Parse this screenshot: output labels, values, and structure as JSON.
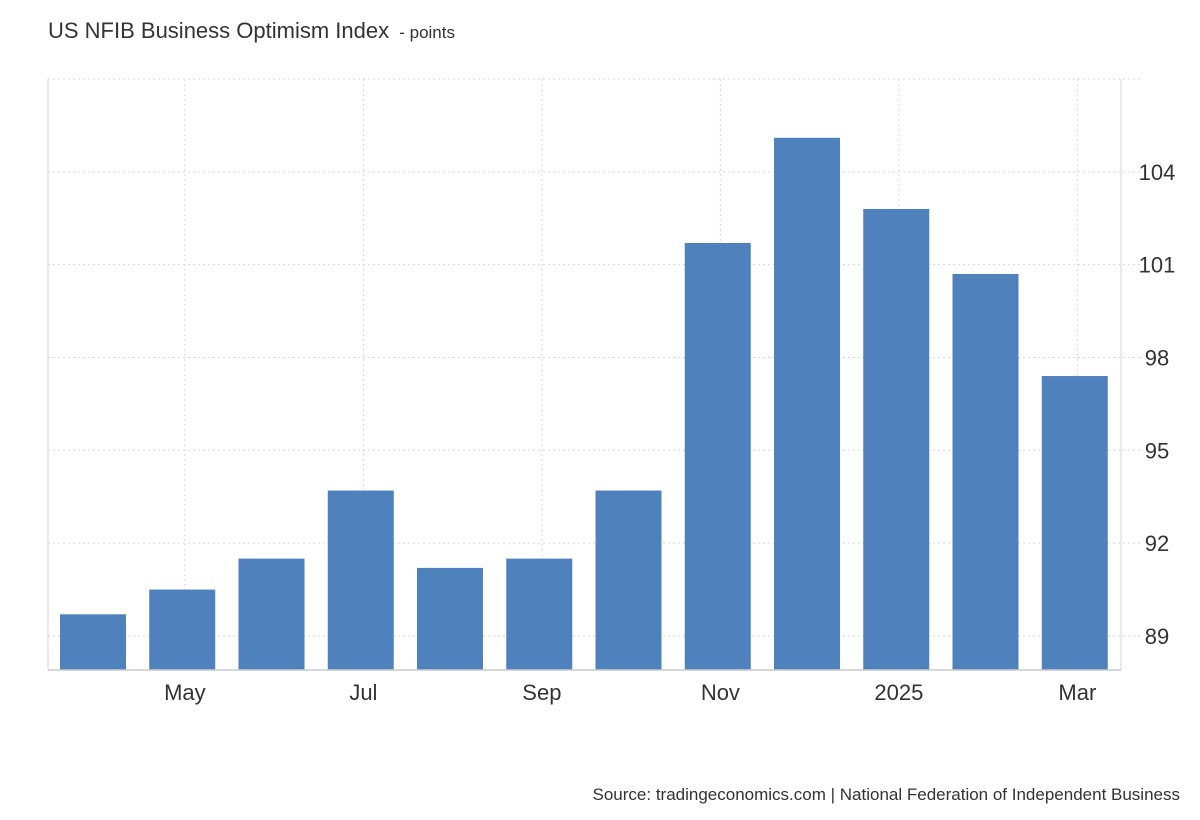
{
  "header": {
    "title": "US NFIB Business Optimism Index",
    "unit": "- points"
  },
  "footer": {
    "source": "Source: tradingeconomics.com | National Federation of Independent Business"
  },
  "colors": {
    "bar": "#4f81bd",
    "grid": "#d6d6d6",
    "text": "#333333"
  },
  "chart_data": {
    "type": "bar",
    "categories": [
      "2024-04",
      "2024-05",
      "2024-06",
      "2024-07",
      "2024-08",
      "2024-09",
      "2024-10",
      "2024-11",
      "2024-12",
      "2025-01",
      "2025-02",
      "2025-03"
    ],
    "values": [
      89.7,
      90.5,
      91.5,
      93.7,
      91.2,
      91.5,
      93.7,
      101.7,
      105.1,
      102.8,
      100.7,
      97.4
    ],
    "x_tick_labels": [
      {
        "index": 1,
        "label": "May"
      },
      {
        "index": 3,
        "label": "Jul"
      },
      {
        "index": 5,
        "label": "Sep"
      },
      {
        "index": 7,
        "label": "Nov"
      },
      {
        "index": 9,
        "label": "2025"
      },
      {
        "index": 11,
        "label": "Mar"
      }
    ],
    "y_ticks": [
      89,
      92,
      95,
      98,
      101,
      104
    ],
    "ylim": [
      87.9,
      107.0
    ],
    "grid": true,
    "y_axis_side": "right",
    "title": "US NFIB Business Optimism Index",
    "ylabel": "points",
    "xlabel": ""
  }
}
